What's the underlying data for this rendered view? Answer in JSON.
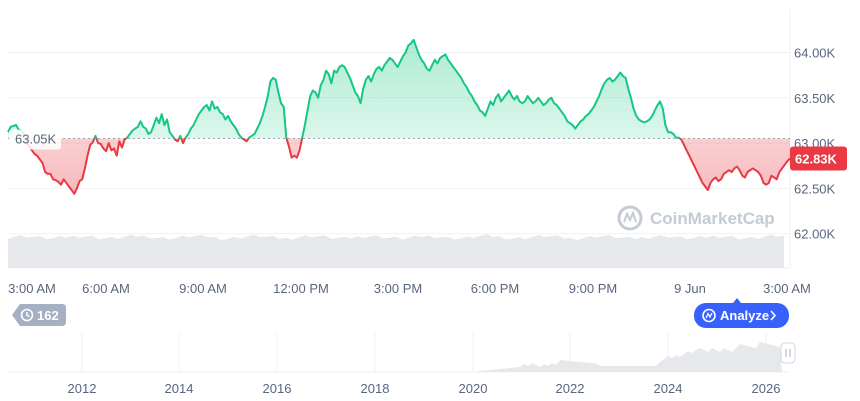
{
  "chart_data": {
    "type": "area",
    "y_ticks": [
      "64.00K",
      "63.50K",
      "63.00K",
      "62.50K",
      "62.00K"
    ],
    "y_tick_values": [
      64000,
      63500,
      63000,
      62500,
      62000
    ],
    "ylim": [
      61620,
      64470
    ],
    "x_ticks": [
      "3:00 AM",
      "6:00 AM",
      "9:00 AM",
      "12:00 PM",
      "3:00 PM",
      "6:00 PM",
      "9:00 PM",
      "9 Jun",
      "3:00 AM"
    ],
    "reference_price": 63050,
    "reference_label": "63.05K",
    "current_price_label": "62.83K",
    "series": [
      {
        "values": [
          63120,
          63180,
          63190,
          63200,
          63150,
          63140,
          63090,
          63000,
          62960,
          62920,
          62880,
          62860,
          62820,
          62780,
          62680,
          62660,
          62660,
          62600,
          62590,
          62570,
          62540,
          62600,
          62560,
          62520,
          62480,
          62440,
          62500,
          62580,
          62600,
          62720,
          62860,
          62980,
          63010,
          63080,
          63000,
          62990,
          62940,
          62910,
          63000,
          62920,
          62940,
          62860,
          63020,
          62950,
          63040,
          63060,
          63100,
          63140,
          63160,
          63180,
          63240,
          63180,
          63160,
          63100,
          63120,
          63200,
          63280,
          63220,
          63320,
          63200,
          63260,
          63120,
          63080,
          63040,
          63020,
          63080,
          63000,
          63060,
          63100,
          63160,
          63200,
          63260,
          63320,
          63360,
          63400,
          63420,
          63360,
          63460,
          63380,
          63400,
          63340,
          63320,
          63260,
          63300,
          63240,
          63200,
          63160,
          63100,
          63060,
          63040,
          63020,
          63060,
          63080,
          63100,
          63160,
          63220,
          63300,
          63400,
          63520,
          63680,
          63720,
          63700,
          63560,
          63440,
          63400,
          63060,
          62960,
          62840,
          62860,
          62840,
          62920,
          63060,
          63200,
          63360,
          63520,
          63580,
          63560,
          63500,
          63640,
          63700,
          63800,
          63760,
          63660,
          63800,
          63780,
          63840,
          63860,
          63840,
          63780,
          63720,
          63640,
          63560,
          63520,
          63440,
          63600,
          63700,
          63740,
          63680,
          63760,
          63820,
          63840,
          63800,
          63860,
          63900,
          63940,
          63920,
          63880,
          63840,
          63900,
          63960,
          64000,
          64080,
          64100,
          64140,
          64060,
          63980,
          63920,
          63880,
          63820,
          63800,
          63860,
          63920,
          63880,
          63940,
          63960,
          63980,
          63920,
          63880,
          63840,
          63800,
          63760,
          63720,
          63660,
          63620,
          63560,
          63520,
          63460,
          63420,
          63360,
          63340,
          63300,
          63380,
          63460,
          63420,
          63500,
          63540,
          63460,
          63500,
          63540,
          63580,
          63520,
          63480,
          63520,
          63460,
          63440,
          63460,
          63520,
          63480,
          63440,
          63460,
          63500,
          63460,
          63420,
          63440,
          63480,
          63500,
          63440,
          63420,
          63380,
          63340,
          63300,
          63240,
          63220,
          63200,
          63160,
          63200,
          63240,
          63260,
          63300,
          63320,
          63360,
          63400,
          63460,
          63520,
          63600,
          63660,
          63700,
          63720,
          63680,
          63700,
          63740,
          63780,
          63740,
          63720,
          63600,
          63500,
          63380,
          63300,
          63260,
          63240,
          63230,
          63240,
          63260,
          63300,
          63360,
          63420,
          63460,
          63380,
          63200,
          63120,
          63120,
          63100,
          63060,
          63060,
          63040,
          62980,
          62920,
          62860,
          62800,
          62740,
          62680,
          62620,
          62560,
          62520,
          62480,
          62560,
          62600,
          62620,
          62580,
          62600,
          62660,
          62680,
          62700,
          62680,
          62720,
          62740,
          62700,
          62640,
          62620,
          62680,
          62700,
          62720,
          62700,
          62680,
          62640,
          62560,
          62540,
          62560,
          62640,
          62620,
          62600,
          62680,
          62720,
          62760,
          62800,
          62830
        ]
      }
    ],
    "grid": true,
    "nav_x_ticks": [
      "2012",
      "2014",
      "2016",
      "2018",
      "2020",
      "2022",
      "2024",
      "2026"
    ]
  },
  "controls": {
    "history_count": "162",
    "analyze_label": "Analyze"
  },
  "watermark": "CoinMarketCap",
  "colors": {
    "up": "#16c784",
    "down": "#ea3943",
    "up_fill_top": "#16c784",
    "down_fill_bottom": "#ea3943",
    "axis_text": "#58667e",
    "volume": "#e6e8ec",
    "button_blue": "#3861fb",
    "pill_gray": "#a6b0c3"
  }
}
